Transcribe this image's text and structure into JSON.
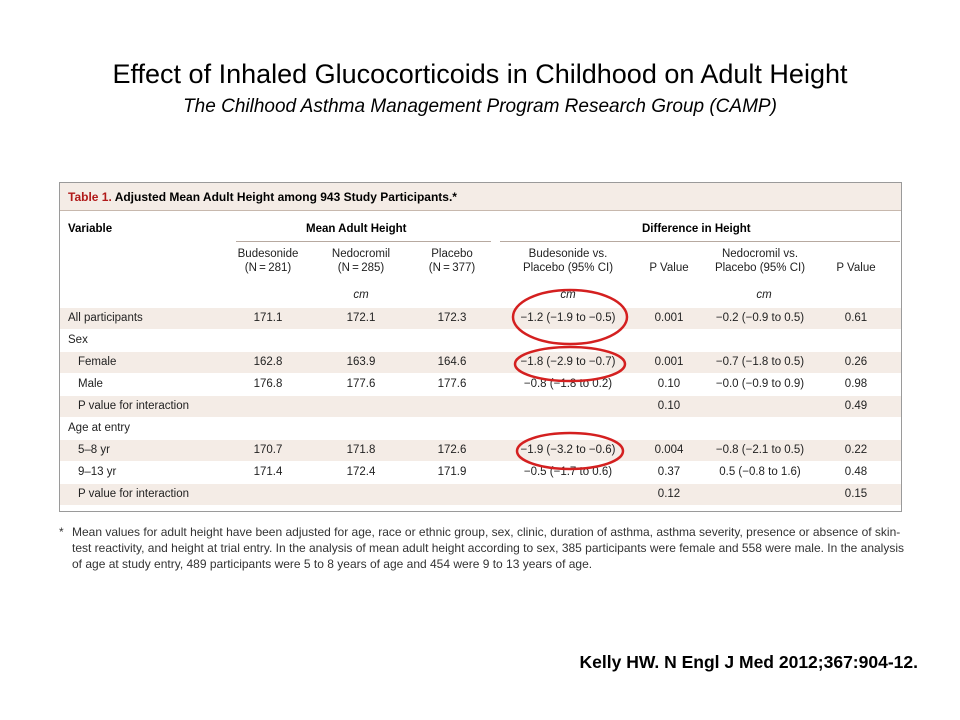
{
  "title": "Effect of Inhaled Glucocorticoids in Childhood on Adult Height",
  "subtitle": "The Chilhood Asthma Management Program Research Group (CAMP)",
  "table": {
    "caption_label": "Table 1.",
    "caption_text": "Adjusted Mean Adult Height among 943 Study Participants.*",
    "group_headers": {
      "variable": "Variable",
      "mean_adult_height": "Mean Adult Height",
      "difference_in_height": "Difference in Height"
    },
    "columns": [
      {
        "line1": "Budesonide",
        "line2": "(N = 281)"
      },
      {
        "line1": "Nedocromil",
        "line2": "(N = 285)"
      },
      {
        "line1": "Placebo",
        "line2": "(N = 377)"
      },
      {
        "line1": "Budesonide vs.",
        "line2": "Placebo (95% CI)"
      },
      {
        "line1": "P Value",
        "line2": ""
      },
      {
        "line1": "Nedocromil vs.",
        "line2": "Placebo (95% CI)"
      },
      {
        "line1": "P Value",
        "line2": ""
      }
    ],
    "units": {
      "mean": "cm",
      "bud_diff": "cm",
      "ned_diff": "cm"
    },
    "rows": [
      {
        "label": "All participants",
        "indent": 0,
        "bud": "171.1",
        "ned": "172.1",
        "pla": "172.3",
        "bud_diff": "−1.2 (−1.9 to −0.5)",
        "p1": "0.001",
        "ned_diff": "−0.2 (−0.9 to 0.5)",
        "p2": "0.61"
      },
      {
        "label": "Sex",
        "indent": 0,
        "bud": "",
        "ned": "",
        "pla": "",
        "bud_diff": "",
        "p1": "",
        "ned_diff": "",
        "p2": ""
      },
      {
        "label": "Female",
        "indent": 1,
        "bud": "162.8",
        "ned": "163.9",
        "pla": "164.6",
        "bud_diff": "−1.8 (−2.9 to −0.7)",
        "p1": "0.001",
        "ned_diff": "−0.7 (−1.8 to 0.5)",
        "p2": "0.26"
      },
      {
        "label": "Male",
        "indent": 1,
        "bud": "176.8",
        "ned": "177.6",
        "pla": "177.6",
        "bud_diff": "−0.8 (−1.8 to 0.2)",
        "p1": "0.10",
        "ned_diff": "−0.0 (−0.9 to 0.9)",
        "p2": "0.98"
      },
      {
        "label": "P value for interaction",
        "indent": 1,
        "bud": "",
        "ned": "",
        "pla": "",
        "bud_diff": "",
        "p1": "0.10",
        "ned_diff": "",
        "p2": "0.49"
      },
      {
        "label": "Age at entry",
        "indent": 0,
        "bud": "",
        "ned": "",
        "pla": "",
        "bud_diff": "",
        "p1": "",
        "ned_diff": "",
        "p2": ""
      },
      {
        "label": "5–8 yr",
        "indent": 1,
        "bud": "170.7",
        "ned": "171.8",
        "pla": "172.6",
        "bud_diff": "−1.9 (−3.2 to −0.6)",
        "p1": "0.004",
        "ned_diff": "−0.8 (−2.1 to 0.5)",
        "p2": "0.22"
      },
      {
        "label": "9–13 yr",
        "indent": 1,
        "bud": "171.4",
        "ned": "172.4",
        "pla": "171.9",
        "bud_diff": "−0.5 (−1.7 to 0.6)",
        "p1": "0.37",
        "ned_diff": "0.5 (−0.8 to 1.6)",
        "p2": "0.48"
      },
      {
        "label": "P value for interaction",
        "indent": 1,
        "bud": "",
        "ned": "",
        "pla": "",
        "bud_diff": "",
        "p1": "0.12",
        "ned_diff": "",
        "p2": "0.15"
      }
    ],
    "highlight_color": "#d42020"
  },
  "footnote": {
    "mark": "*",
    "text": "Mean values for adult height have been adjusted for age, race or ethnic group, sex, clinic, duration of asthma, asthma severity, presence or absence of skin-test reactivity, and height at trial entry. In the analysis of mean adult height according to sex, 385 participants were female and 558 were male. In the analysis of age at study entry, 489 participants were 5 to 8 years of age and 454 were 9 to 13 years of age."
  },
  "citation": "Kelly HW. N Engl J Med 2012;367:904-12."
}
